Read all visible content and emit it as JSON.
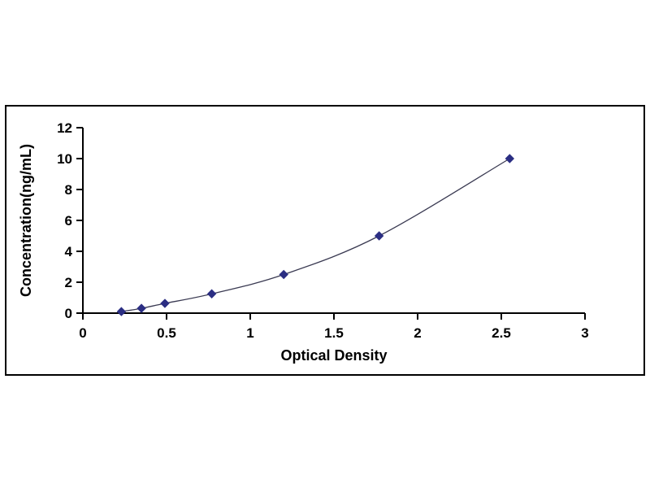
{
  "chart_data": {
    "type": "line",
    "title": "",
    "xlabel": "Optical Density",
    "ylabel": "Concentration(ng/mL)",
    "x": [
      0.23,
      0.35,
      0.49,
      0.77,
      1.2,
      1.77,
      2.55
    ],
    "y": [
      0.1,
      0.31,
      0.63,
      1.25,
      2.5,
      5,
      10
    ],
    "xlim": [
      0,
      3
    ],
    "ylim": [
      0,
      12
    ],
    "xticks": {
      "values": [
        0,
        0.5,
        1,
        1.5,
        2,
        2.5,
        3
      ],
      "labels": [
        "0",
        "0.5",
        "1",
        "1.5",
        "2",
        "2.5",
        "3"
      ]
    },
    "yticks": {
      "values": [
        0,
        2,
        4,
        6,
        8,
        10,
        12
      ],
      "labels": [
        "0",
        "2",
        "4",
        "6",
        "8",
        "10",
        "12"
      ]
    },
    "grid": "off",
    "legend": "none",
    "marker": "diamond",
    "marker_color": "#2B2E83",
    "line_color": "#3A3A52",
    "axis_color": "#000000",
    "frame_border_color": "#000000",
    "background_color": "#ffffff"
  }
}
